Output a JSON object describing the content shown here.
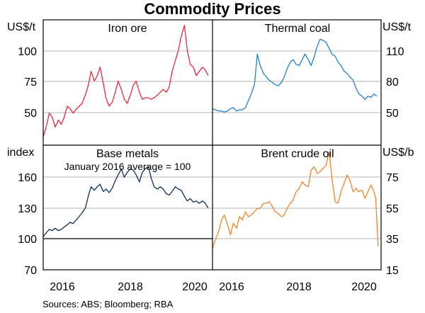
{
  "title": "Commodity Prices",
  "source": "Sources:   ABS; Bloomberg; RBA",
  "colors": {
    "iron_ore": "#e8283c",
    "thermal_coal": "#1f7fd1",
    "base_metals": "#0f2d5a",
    "brent": "#f5822a",
    "grid": "#b4b4b4"
  },
  "units": {
    "top_left": "US$/t",
    "top_right": "US$/t",
    "bottom_left": "index",
    "bottom_right": "US$/b"
  },
  "x_ticks": [
    "2016",
    "2018",
    "2020"
  ],
  "y_ticks": {
    "top_left": [
      "100",
      "75",
      "50"
    ],
    "top_right": [
      "110",
      "80",
      "50"
    ],
    "bottom_left": [
      "160",
      "130",
      "100",
      "70"
    ],
    "bottom_right": [
      "75",
      "55",
      "35",
      "15"
    ]
  },
  "chart_data": [
    {
      "type": "line",
      "panel": "top-left",
      "title": "Iron ore",
      "ylabel": "US$/t",
      "ylim": [
        32,
        122
      ],
      "xlim": [
        2015.5,
        2020.2
      ],
      "x": [
        2015.5,
        2015.58,
        2015.67,
        2015.75,
        2015.83,
        2015.92,
        2016.0,
        2016.08,
        2016.17,
        2016.25,
        2016.33,
        2016.42,
        2016.5,
        2016.58,
        2016.67,
        2016.75,
        2016.83,
        2016.92,
        2017.0,
        2017.08,
        2017.17,
        2017.25,
        2017.33,
        2017.42,
        2017.5,
        2017.58,
        2017.67,
        2017.75,
        2017.83,
        2017.92,
        2018.0,
        2018.08,
        2018.17,
        2018.25,
        2018.33,
        2018.42,
        2018.5,
        2018.58,
        2018.67,
        2018.75,
        2018.83,
        2018.92,
        2019.0,
        2019.08,
        2019.17,
        2019.25,
        2019.33,
        2019.42,
        2019.5,
        2019.58,
        2019.67,
        2019.75,
        2019.83,
        2019.92,
        2020.0,
        2020.08
      ],
      "values": [
        38,
        45,
        55,
        52,
        45,
        50,
        47,
        52,
        60,
        58,
        55,
        58,
        60,
        62,
        68,
        75,
        85,
        78,
        82,
        88,
        76,
        65,
        60,
        63,
        70,
        78,
        72,
        65,
        62,
        68,
        75,
        78,
        70,
        65,
        66,
        66,
        65,
        66,
        68,
        70,
        72,
        70,
        74,
        85,
        93,
        100,
        110,
        118,
        100,
        90,
        88,
        82,
        85,
        88,
        86,
        82
      ]
    },
    {
      "type": "line",
      "panel": "top-right",
      "title": "Thermal coal",
      "ylabel": "US$/t",
      "ylim": [
        25,
        135
      ],
      "xlim": [
        2015.5,
        2020.2
      ],
      "x": [
        2015.5,
        2015.58,
        2015.67,
        2015.75,
        2015.83,
        2015.92,
        2016.0,
        2016.08,
        2016.17,
        2016.25,
        2016.33,
        2016.42,
        2016.5,
        2016.58,
        2016.67,
        2016.75,
        2016.83,
        2016.92,
        2017.0,
        2017.08,
        2017.17,
        2017.25,
        2017.33,
        2017.42,
        2017.5,
        2017.58,
        2017.67,
        2017.75,
        2017.83,
        2017.92,
        2018.0,
        2018.08,
        2018.17,
        2018.25,
        2018.33,
        2018.42,
        2018.5,
        2018.58,
        2018.67,
        2018.75,
        2018.83,
        2018.92,
        2019.0,
        2019.08,
        2019.17,
        2019.25,
        2019.33,
        2019.42,
        2019.5,
        2019.58,
        2019.67,
        2019.75,
        2019.83,
        2019.92,
        2020.0,
        2020.08
      ],
      "values": [
        57,
        56,
        55,
        55,
        54,
        55,
        57,
        58,
        55,
        56,
        56,
        58,
        64,
        70,
        78,
        105,
        95,
        88,
        85,
        82,
        80,
        78,
        77,
        80,
        85,
        92,
        98,
        100,
        96,
        95,
        100,
        105,
        100,
        95,
        102,
        112,
        118,
        117,
        115,
        110,
        105,
        103,
        98,
        95,
        90,
        88,
        85,
        82,
        75,
        70,
        68,
        65,
        68,
        67,
        70,
        68
      ]
    },
    {
      "type": "line",
      "panel": "bottom-left",
      "title": "Base metals",
      "subtitle": "January 2016 average = 100",
      "ylabel": "index",
      "ylim": [
        70,
        175
      ],
      "xlim": [
        2015.5,
        2020.2
      ],
      "reference_line": 100,
      "x": [
        2015.5,
        2015.58,
        2015.67,
        2015.75,
        2015.83,
        2015.92,
        2016.0,
        2016.08,
        2016.17,
        2016.25,
        2016.33,
        2016.42,
        2016.5,
        2016.58,
        2016.67,
        2016.75,
        2016.83,
        2016.92,
        2017.0,
        2017.08,
        2017.17,
        2017.25,
        2017.33,
        2017.42,
        2017.5,
        2017.58,
        2017.67,
        2017.75,
        2017.83,
        2017.92,
        2018.0,
        2018.08,
        2018.17,
        2018.25,
        2018.33,
        2018.42,
        2018.5,
        2018.58,
        2018.67,
        2018.75,
        2018.83,
        2018.92,
        2019.0,
        2019.08,
        2019.17,
        2019.25,
        2019.33,
        2019.42,
        2019.5,
        2019.58,
        2019.67,
        2019.75,
        2019.83,
        2019.92,
        2020.0,
        2020.08
      ],
      "values": [
        98,
        101,
        104,
        103,
        105,
        103,
        104,
        106,
        108,
        110,
        109,
        112,
        115,
        118,
        122,
        132,
        140,
        137,
        140,
        142,
        136,
        138,
        135,
        139,
        145,
        150,
        155,
        148,
        152,
        155,
        154,
        150,
        144,
        152,
        155,
        157,
        147,
        140,
        138,
        140,
        138,
        134,
        133,
        136,
        140,
        138,
        137,
        132,
        128,
        130,
        127,
        128,
        126,
        128,
        126,
        122
      ]
    },
    {
      "type": "line",
      "panel": "bottom-right",
      "title": "Brent crude oil",
      "ylabel": "US$/b",
      "ylim": [
        15,
        90
      ],
      "xlim": [
        2015.5,
        2020.2
      ],
      "x": [
        2015.5,
        2015.58,
        2015.67,
        2015.75,
        2015.83,
        2015.92,
        2016.0,
        2016.08,
        2016.17,
        2016.25,
        2016.33,
        2016.42,
        2016.5,
        2016.58,
        2016.67,
        2016.75,
        2016.83,
        2016.92,
        2017.0,
        2017.08,
        2017.17,
        2017.25,
        2017.33,
        2017.42,
        2017.5,
        2017.58,
        2017.67,
        2017.75,
        2017.83,
        2017.92,
        2018.0,
        2018.08,
        2018.17,
        2018.25,
        2018.33,
        2018.42,
        2018.5,
        2018.58,
        2018.67,
        2018.75,
        2018.83,
        2018.92,
        2019.0,
        2019.08,
        2019.17,
        2019.25,
        2019.33,
        2019.42,
        2019.5,
        2019.58,
        2019.67,
        2019.75,
        2019.83,
        2019.92,
        2020.0,
        2020.05,
        2020.12
      ],
      "values": [
        28,
        33,
        38,
        45,
        48,
        42,
        36,
        43,
        40,
        47,
        45,
        50,
        47,
        48,
        50,
        52,
        52,
        55,
        55,
        56,
        53,
        50,
        49,
        47,
        48,
        52,
        55,
        57,
        62,
        64,
        68,
        66,
        65,
        75,
        77,
        73,
        74,
        76,
        78,
        86,
        70,
        56,
        55,
        62,
        67,
        72,
        69,
        62,
        64,
        62,
        63,
        58,
        62,
        66,
        62,
        58,
        29
      ]
    }
  ]
}
